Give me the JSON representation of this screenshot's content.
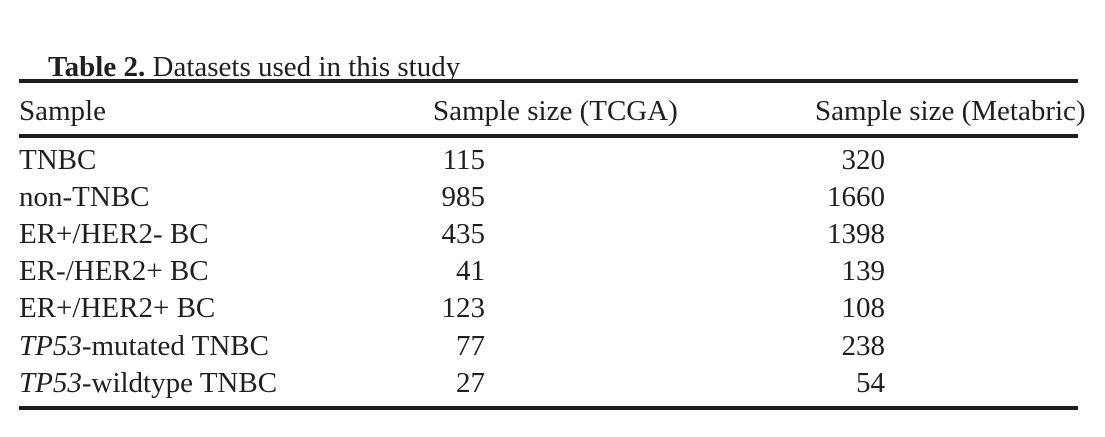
{
  "caption": {
    "label": "Table 2.",
    "text": " Datasets used in this study"
  },
  "table": {
    "columns": [
      "Sample",
      "Sample size (TCGA)",
      "Sample size (Metabric)"
    ],
    "rows": [
      {
        "italic": "",
        "sample": "TNBC",
        "tcga": "115",
        "metabric": "320"
      },
      {
        "italic": "",
        "sample": "non-TNBC",
        "tcga": "985",
        "metabric": "1660"
      },
      {
        "italic": "",
        "sample": "ER+/HER2- BC",
        "tcga": "435",
        "metabric": "1398"
      },
      {
        "italic": "",
        "sample": "ER-/HER2+ BC",
        "tcga": "41",
        "metabric": "139"
      },
      {
        "italic": "",
        "sample": "ER+/HER2+ BC",
        "tcga": "123",
        "metabric": "108"
      },
      {
        "italic": "TP53",
        "sample": "-mutated TNBC",
        "tcga": "77",
        "metabric": "238"
      },
      {
        "italic": "TP53",
        "sample": "-wildtype TNBC",
        "tcga": "27",
        "metabric": "54"
      }
    ]
  }
}
